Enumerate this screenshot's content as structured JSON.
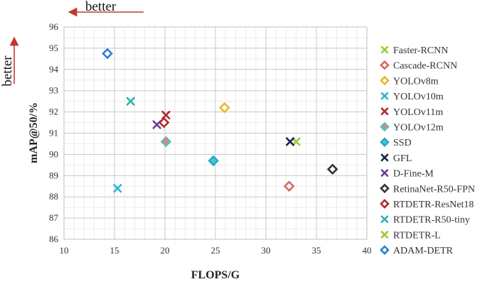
{
  "chart_data": {
    "type": "scatter",
    "title": "",
    "xlabel": "FLOPS/G",
    "ylabel": "mAP@50/%",
    "xlim": [
      10,
      40
    ],
    "ylim": [
      86,
      96
    ],
    "xticks": [
      10,
      15,
      20,
      25,
      30,
      35,
      40
    ],
    "yticks": [
      86,
      87,
      88,
      89,
      90,
      91,
      92,
      93,
      94,
      95,
      96
    ],
    "grid": true,
    "legend_position": "right",
    "annotations": {
      "x_better": "better",
      "y_better": "better"
    },
    "series": [
      {
        "name": "Faster-RCNN",
        "marker": "x",
        "color": "#9acd32",
        "x": [
          33.0
        ],
        "y": [
          90.6
        ]
      },
      {
        "name": "Cascade-RCNN",
        "marker": "diamond",
        "color": "#d9655f",
        "x": [
          32.3
        ],
        "y": [
          88.5
        ]
      },
      {
        "name": "YOLOv8m",
        "marker": "diamond",
        "color": "#e8b923",
        "x": [
          25.9
        ],
        "y": [
          92.2
        ]
      },
      {
        "name": "YOLOv10m",
        "marker": "x",
        "color": "#2fb4d8",
        "x": [
          15.3
        ],
        "y": [
          88.4
        ]
      },
      {
        "name": "YOLOv11m",
        "marker": "x",
        "color": "#b0282e",
        "x": [
          20.1
        ],
        "y": [
          91.85
        ]
      },
      {
        "name": "YOLOv12m",
        "marker": "diamond-filled",
        "color": "#5bbfb5",
        "fill": "#f07f72",
        "x": [
          20.1
        ],
        "y": [
          90.6
        ]
      },
      {
        "name": "SSD",
        "marker": "diamond-filled",
        "color": "#2aa8c2",
        "fill": "#4fc3d6",
        "x": [
          24.8
        ],
        "y": [
          89.7
        ]
      },
      {
        "name": "GFL",
        "marker": "x",
        "color": "#1a2550",
        "x": [
          32.4
        ],
        "y": [
          90.6
        ]
      },
      {
        "name": "D-Fine-M",
        "marker": "x",
        "color": "#6a3d9a",
        "x": [
          19.2
        ],
        "y": [
          91.4
        ]
      },
      {
        "name": "RetinaNet-R50-FPN",
        "marker": "diamond",
        "color": "#333333",
        "x": [
          36.6
        ],
        "y": [
          89.3
        ]
      },
      {
        "name": "RTDETR-ResNet18",
        "marker": "diamond",
        "color": "#b0282e",
        "x": [
          19.9
        ],
        "y": [
          91.5
        ]
      },
      {
        "name": "RTDETR-R50-tiny",
        "marker": "x",
        "color": "#2fb4b4",
        "x": [
          16.6
        ],
        "y": [
          92.5
        ]
      },
      {
        "name": "RTDETR-L",
        "marker": "x",
        "color": "#9acd32",
        "x": [],
        "y": []
      },
      {
        "name": "ADAM-DETR",
        "marker": "diamond",
        "color": "#2a7fd4",
        "x": [
          14.3
        ],
        "y": [
          94.75
        ]
      }
    ]
  }
}
